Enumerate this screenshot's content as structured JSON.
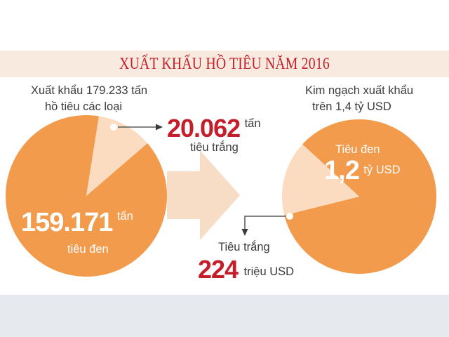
{
  "title": "XUẤT KHẨU HỒ TIÊU NĂM 2016",
  "left_pie": {
    "header_line1": "Xuất khẩu 179.233 tấn",
    "header_line2": "hồ tiêu các loại",
    "white_value": "20.062",
    "white_unit": "tấn",
    "white_label": "tiêu trắng",
    "black_value": "159.171",
    "black_unit": "tấn",
    "black_label": "tiêu đen"
  },
  "right_pie": {
    "header_line1": "Kim ngạch xuất khẩu",
    "header_line2": "trên 1,4 tỷ USD",
    "black_label": "Tiêu đen",
    "black_value": "1,2",
    "black_unit": "tỷ USD",
    "white_label": "Tiêu trắng",
    "white_value": "224",
    "white_unit": "triệu USD"
  },
  "colors": {
    "orange": "#f29b4c",
    "light_slice": "#fbdcc0",
    "red": "#c41e2a",
    "band": "#f9eadf",
    "arrow": "#f8ddc6"
  },
  "chart_data": [
    {
      "type": "pie",
      "title": "Xuất khẩu 179.233 tấn hồ tiêu các loại",
      "unit": "tấn",
      "labels": [
        "tiêu đen",
        "tiêu trắng"
      ],
      "values": [
        159171,
        20062
      ]
    },
    {
      "type": "pie",
      "title": "Kim ngạch xuất khẩu trên 1,4 tỷ USD",
      "unit": "triệu USD",
      "labels": [
        "Tiêu đen",
        "Tiêu trắng"
      ],
      "values": [
        1200,
        224
      ]
    }
  ]
}
